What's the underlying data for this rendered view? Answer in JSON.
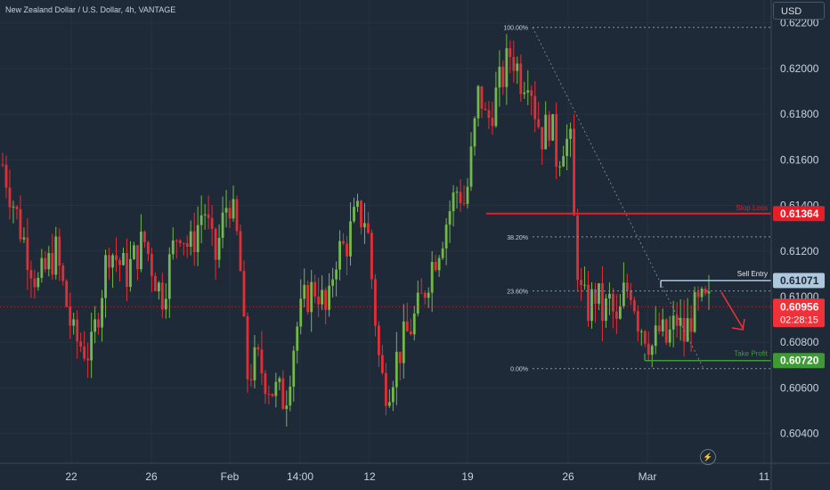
{
  "header": {
    "title": "New Zealand Dollar / U.S. Dollar, 4h, VANTAGE",
    "currency_button": "USD"
  },
  "colors": {
    "background": "#1f2a38",
    "up": "#72b84b",
    "down": "#e22f36",
    "stop_loss": "#e61e28",
    "take_profit": "#3e9a35",
    "entry": "#aec8de",
    "current": "#f0313a"
  },
  "icons": {
    "bolt": "lightning-icon"
  },
  "chart_data": {
    "type": "candlestick",
    "x_ticks": [
      "22",
      "26",
      "Feb",
      "14:00",
      "12",
      "19",
      "26",
      "Mar",
      "11"
    ],
    "ylim": [
      0.6027,
      0.623
    ],
    "y_ticks": [
      0.622,
      0.62,
      0.618,
      0.616,
      0.614,
      0.612,
      0.61,
      0.608,
      0.606,
      0.604
    ],
    "y_tick_labels": [
      "0.62200",
      "0.62000",
      "0.61800",
      "0.61600",
      "0.61400",
      "0.61200",
      "0.61000",
      "0.60800",
      "0.60600",
      "0.60400"
    ],
    "price_labels": [
      {
        "label": "Stop Loss",
        "value": 0.61364,
        "text": "0.61364",
        "color": "#e61e28"
      },
      {
        "label": "Sell Entry",
        "value": 0.61071,
        "text": "0.61071",
        "color": "#aec8de"
      },
      {
        "label": "Take Profit",
        "value": 0.6072,
        "text": "0.60720",
        "color": "#3e9a35"
      }
    ],
    "current_price": {
      "value": 0.60956,
      "text": "0.60956",
      "countdown": "02:28:15"
    },
    "fibonacci": [
      {
        "label": "100.00%",
        "value": 0.6218
      },
      {
        "label": "38.20%",
        "value": 0.61262
      },
      {
        "label": "23.60%",
        "value": 0.61025
      },
      {
        "label": "0.00%",
        "value": 0.60685
      }
    ],
    "close_path": [
      [
        0,
        0.6158
      ],
      [
        0.025,
        0.613
      ],
      [
        0.05,
        0.6105
      ],
      [
        0.075,
        0.612
      ],
      [
        0.1,
        0.6082
      ],
      [
        0.125,
        0.6075
      ],
      [
        0.15,
        0.6122
      ],
      [
        0.175,
        0.611
      ],
      [
        0.2,
        0.6125
      ],
      [
        0.225,
        0.61
      ],
      [
        0.25,
        0.6132
      ],
      [
        0.265,
        0.612
      ],
      [
        0.285,
        0.614
      ],
      [
        0.3,
        0.6115
      ],
      [
        0.32,
        0.6145
      ],
      [
        0.335,
        0.612
      ],
      [
        0.345,
        0.6065
      ],
      [
        0.36,
        0.6072
      ],
      [
        0.38,
        0.606
      ],
      [
        0.4,
        0.6055
      ],
      [
        0.415,
        0.6085
      ],
      [
        0.43,
        0.61
      ],
      [
        0.445,
        0.6105
      ],
      [
        0.46,
        0.609
      ],
      [
        0.47,
        0.6118
      ],
      [
        0.485,
        0.6122
      ],
      [
        0.5,
        0.6135
      ],
      [
        0.515,
        0.6135
      ],
      [
        0.525,
        0.61
      ],
      [
        0.535,
        0.6065
      ],
      [
        0.545,
        0.606
      ],
      [
        0.56,
        0.6075
      ],
      [
        0.575,
        0.6085
      ],
      [
        0.59,
        0.6095
      ],
      [
        0.605,
        0.6112
      ],
      [
        0.62,
        0.6125
      ],
      [
        0.635,
        0.614
      ],
      [
        0.645,
        0.6148
      ],
      [
        0.655,
        0.614
      ],
      [
        0.665,
        0.6165
      ],
      [
        0.675,
        0.6192
      ],
      [
        0.685,
        0.6175
      ],
      [
        0.695,
        0.6185
      ],
      [
        0.71,
        0.6198
      ],
      [
        0.72,
        0.6208
      ],
      [
        0.735,
        0.6195
      ],
      [
        0.745,
        0.62
      ],
      [
        0.755,
        0.618
      ],
      [
        0.765,
        0.617
      ],
      [
        0.775,
        0.6178
      ],
      [
        0.785,
        0.616
      ],
      [
        0.795,
        0.617
      ],
      [
        0.805,
        0.6165
      ],
      [
        0.81,
        0.6125
      ],
      [
        0.82,
        0.6098
      ],
      [
        0.83,
        0.6095
      ],
      [
        0.84,
        0.6102
      ],
      [
        0.85,
        0.6092
      ],
      [
        0.86,
        0.6098
      ],
      [
        0.87,
        0.6085
      ],
      [
        0.88,
        0.6102
      ],
      [
        0.89,
        0.6105
      ],
      [
        0.9,
        0.609
      ],
      [
        0.91,
        0.6085
      ],
      [
        0.92,
        0.6078
      ],
      [
        0.93,
        0.6085
      ],
      [
        0.94,
        0.608
      ],
      [
        0.955,
        0.609
      ],
      [
        0.965,
        0.6082
      ],
      [
        0.975,
        0.6092
      ],
      [
        0.99,
        0.6096
      ]
    ],
    "annotations": {
      "sell_entry_text": "Sell Entry",
      "stop_loss_text": "Stop Loss",
      "take_profit_text": "Take Profit"
    }
  }
}
